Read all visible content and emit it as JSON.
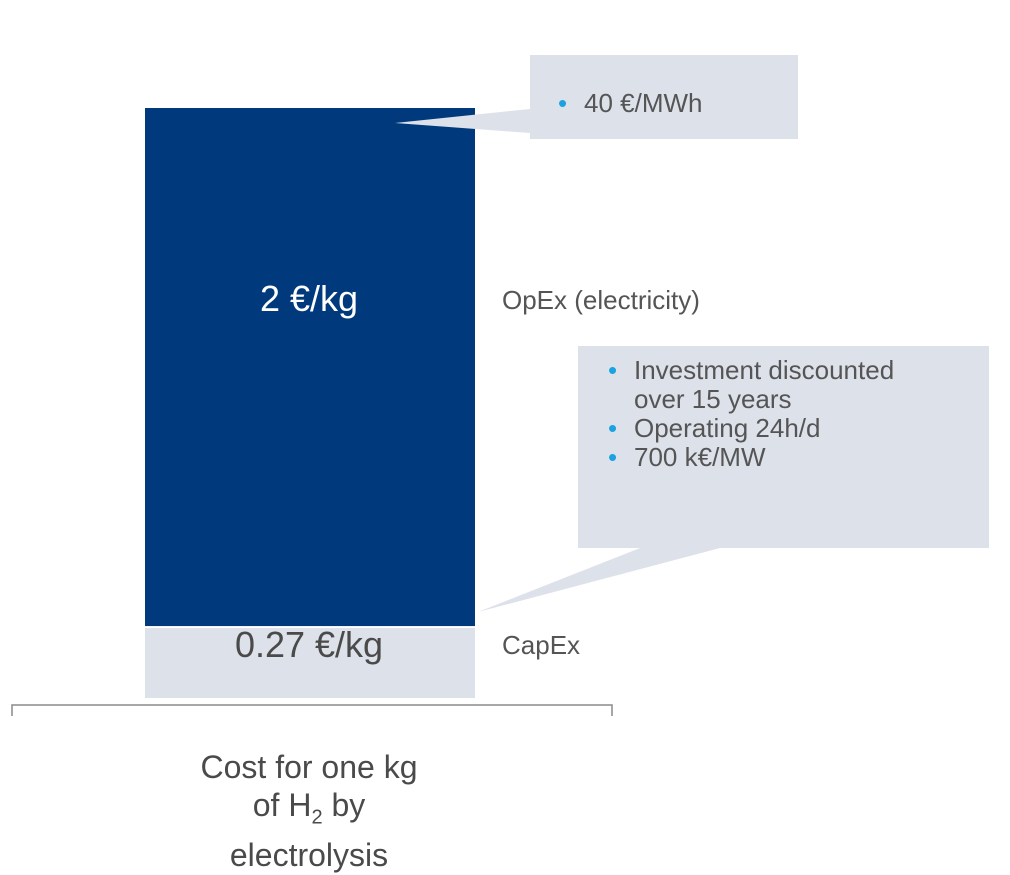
{
  "chart_data": {
    "type": "stacked-bar",
    "unit": "€/kg",
    "categories": [
      "Cost for one kg of H2 by electrolysis"
    ],
    "series": [
      {
        "name": "CapEx",
        "value": 0.27,
        "label": "0.27 €/kg",
        "color": "#dde1ea"
      },
      {
        "name": "OpEx (electricity)",
        "value": 2,
        "label": "2 €/kg",
        "color": "#003a7d"
      }
    ],
    "annotations": {
      "opex": [
        "40 €/MWh"
      ],
      "capex": [
        "Investment discounted over 15 years",
        "Operating 24h/d",
        "700 k€/MW"
      ]
    },
    "xlabel_parts": {
      "before": "Cost for one kg",
      "line2_pre": "of H",
      "subscript": "2",
      "line2_post": " by",
      "after": "electrolysis"
    }
  }
}
